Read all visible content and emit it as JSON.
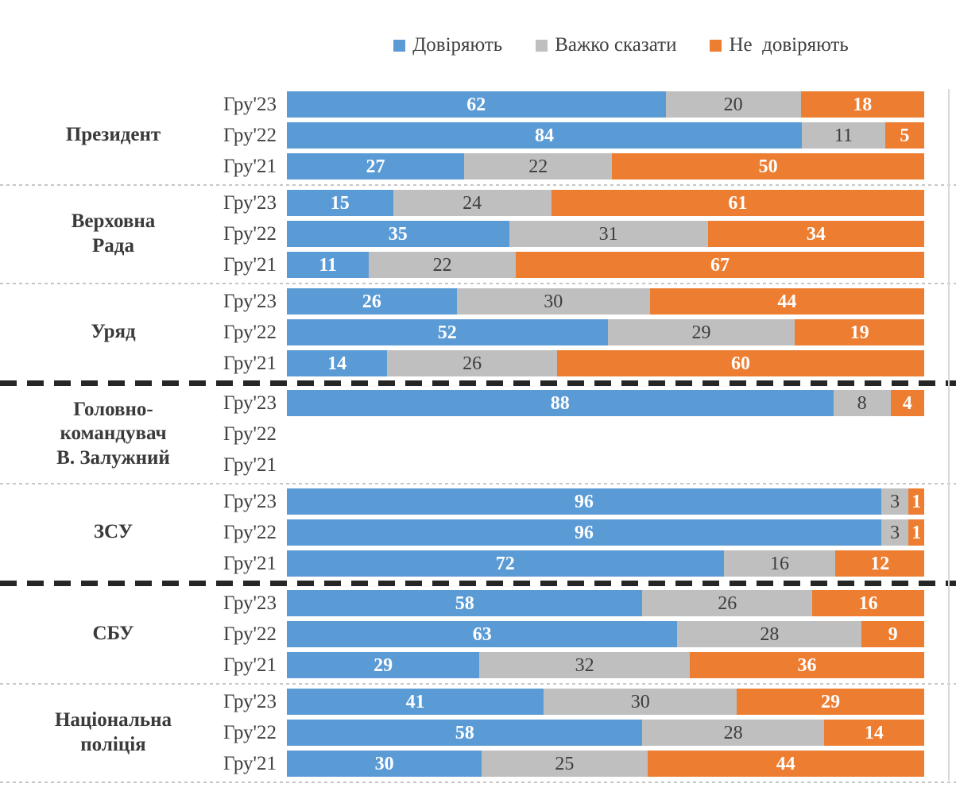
{
  "legend": {
    "items": [
      {
        "label": "Довіряють",
        "color": "#5B9BD5"
      },
      {
        "label": "Важко сказати",
        "color": "#BFBFBF"
      },
      {
        "label": "Не  довіряють",
        "color": "#ED7D31"
      }
    ]
  },
  "colors": {
    "trust": "#5B9BD5",
    "hard_to_say": "#BFBFBF",
    "distrust": "#ED7D31",
    "value_label_light": "#FFFFFF",
    "value_label_dark": "#3D3D3D",
    "text": "#404040",
    "separator_light": "#C6C6C6",
    "separator_heavy": "#262626",
    "plot_border": "#D9D9D9"
  },
  "chart_data": {
    "type": "bar",
    "variant": "horizontal_stacked_100_percent",
    "series": [
      "Довіряють",
      "Важко сказати",
      "Не довіряють"
    ],
    "series_colors": [
      "#5B9BD5",
      "#BFBFBF",
      "#ED7D31"
    ],
    "periods": [
      "Гру'23",
      "Гру'22",
      "Гру'21"
    ],
    "legend_position": "top",
    "xlim": [
      0,
      100
    ],
    "grid": false,
    "groups": [
      {
        "label_lines": [
          "Президент"
        ],
        "rows": [
          {
            "period": "Гру'23",
            "values": [
              62,
              20,
              18
            ]
          },
          {
            "period": "Гру'22",
            "values": [
              84,
              11,
              5
            ]
          },
          {
            "period": "Гру'21",
            "values": [
              27,
              22,
              50
            ]
          }
        ],
        "separator_after": "light"
      },
      {
        "label_lines": [
          "Верховна",
          "Рада"
        ],
        "rows": [
          {
            "period": "Гру'23",
            "values": [
              15,
              24,
              61
            ]
          },
          {
            "period": "Гру'22",
            "values": [
              35,
              31,
              34
            ]
          },
          {
            "period": "Гру'21",
            "values": [
              11,
              22,
              67
            ]
          }
        ],
        "separator_after": "light"
      },
      {
        "label_lines": [
          "Уряд"
        ],
        "rows": [
          {
            "period": "Гру'23",
            "values": [
              26,
              30,
              44
            ]
          },
          {
            "period": "Гру'22",
            "values": [
              52,
              29,
              19
            ]
          },
          {
            "period": "Гру'21",
            "values": [
              14,
              26,
              60
            ]
          }
        ],
        "separator_after": "heavy"
      },
      {
        "label_lines": [
          "Головно-",
          "командувач",
          "В. Залужний"
        ],
        "rows": [
          {
            "period": "Гру'23",
            "values": [
              88,
              8,
              4
            ]
          },
          {
            "period": "Гру'22",
            "values": null
          },
          {
            "period": "Гру'21",
            "values": null
          }
        ],
        "separator_after": "light"
      },
      {
        "label_lines": [
          "ЗСУ"
        ],
        "rows": [
          {
            "period": "Гру'23",
            "values": [
              96,
              3,
              1
            ]
          },
          {
            "period": "Гру'22",
            "values": [
              96,
              3,
              1
            ]
          },
          {
            "period": "Гру'21",
            "values": [
              72,
              16,
              12
            ]
          }
        ],
        "separator_after": "heavy"
      },
      {
        "label_lines": [
          "СБУ"
        ],
        "rows": [
          {
            "period": "Гру'23",
            "values": [
              58,
              26,
              16
            ]
          },
          {
            "period": "Гру'22",
            "values": [
              63,
              28,
              9
            ]
          },
          {
            "period": "Гру'21",
            "values": [
              29,
              32,
              36
            ]
          }
        ],
        "separator_after": "light"
      },
      {
        "label_lines": [
          "Національна",
          "поліція"
        ],
        "rows": [
          {
            "period": "Гру'23",
            "values": [
              41,
              30,
              29
            ]
          },
          {
            "period": "Гру'22",
            "values": [
              58,
              28,
              14
            ]
          },
          {
            "period": "Гру'21",
            "values": [
              30,
              25,
              44
            ]
          }
        ],
        "separator_after": "bottom"
      }
    ]
  }
}
